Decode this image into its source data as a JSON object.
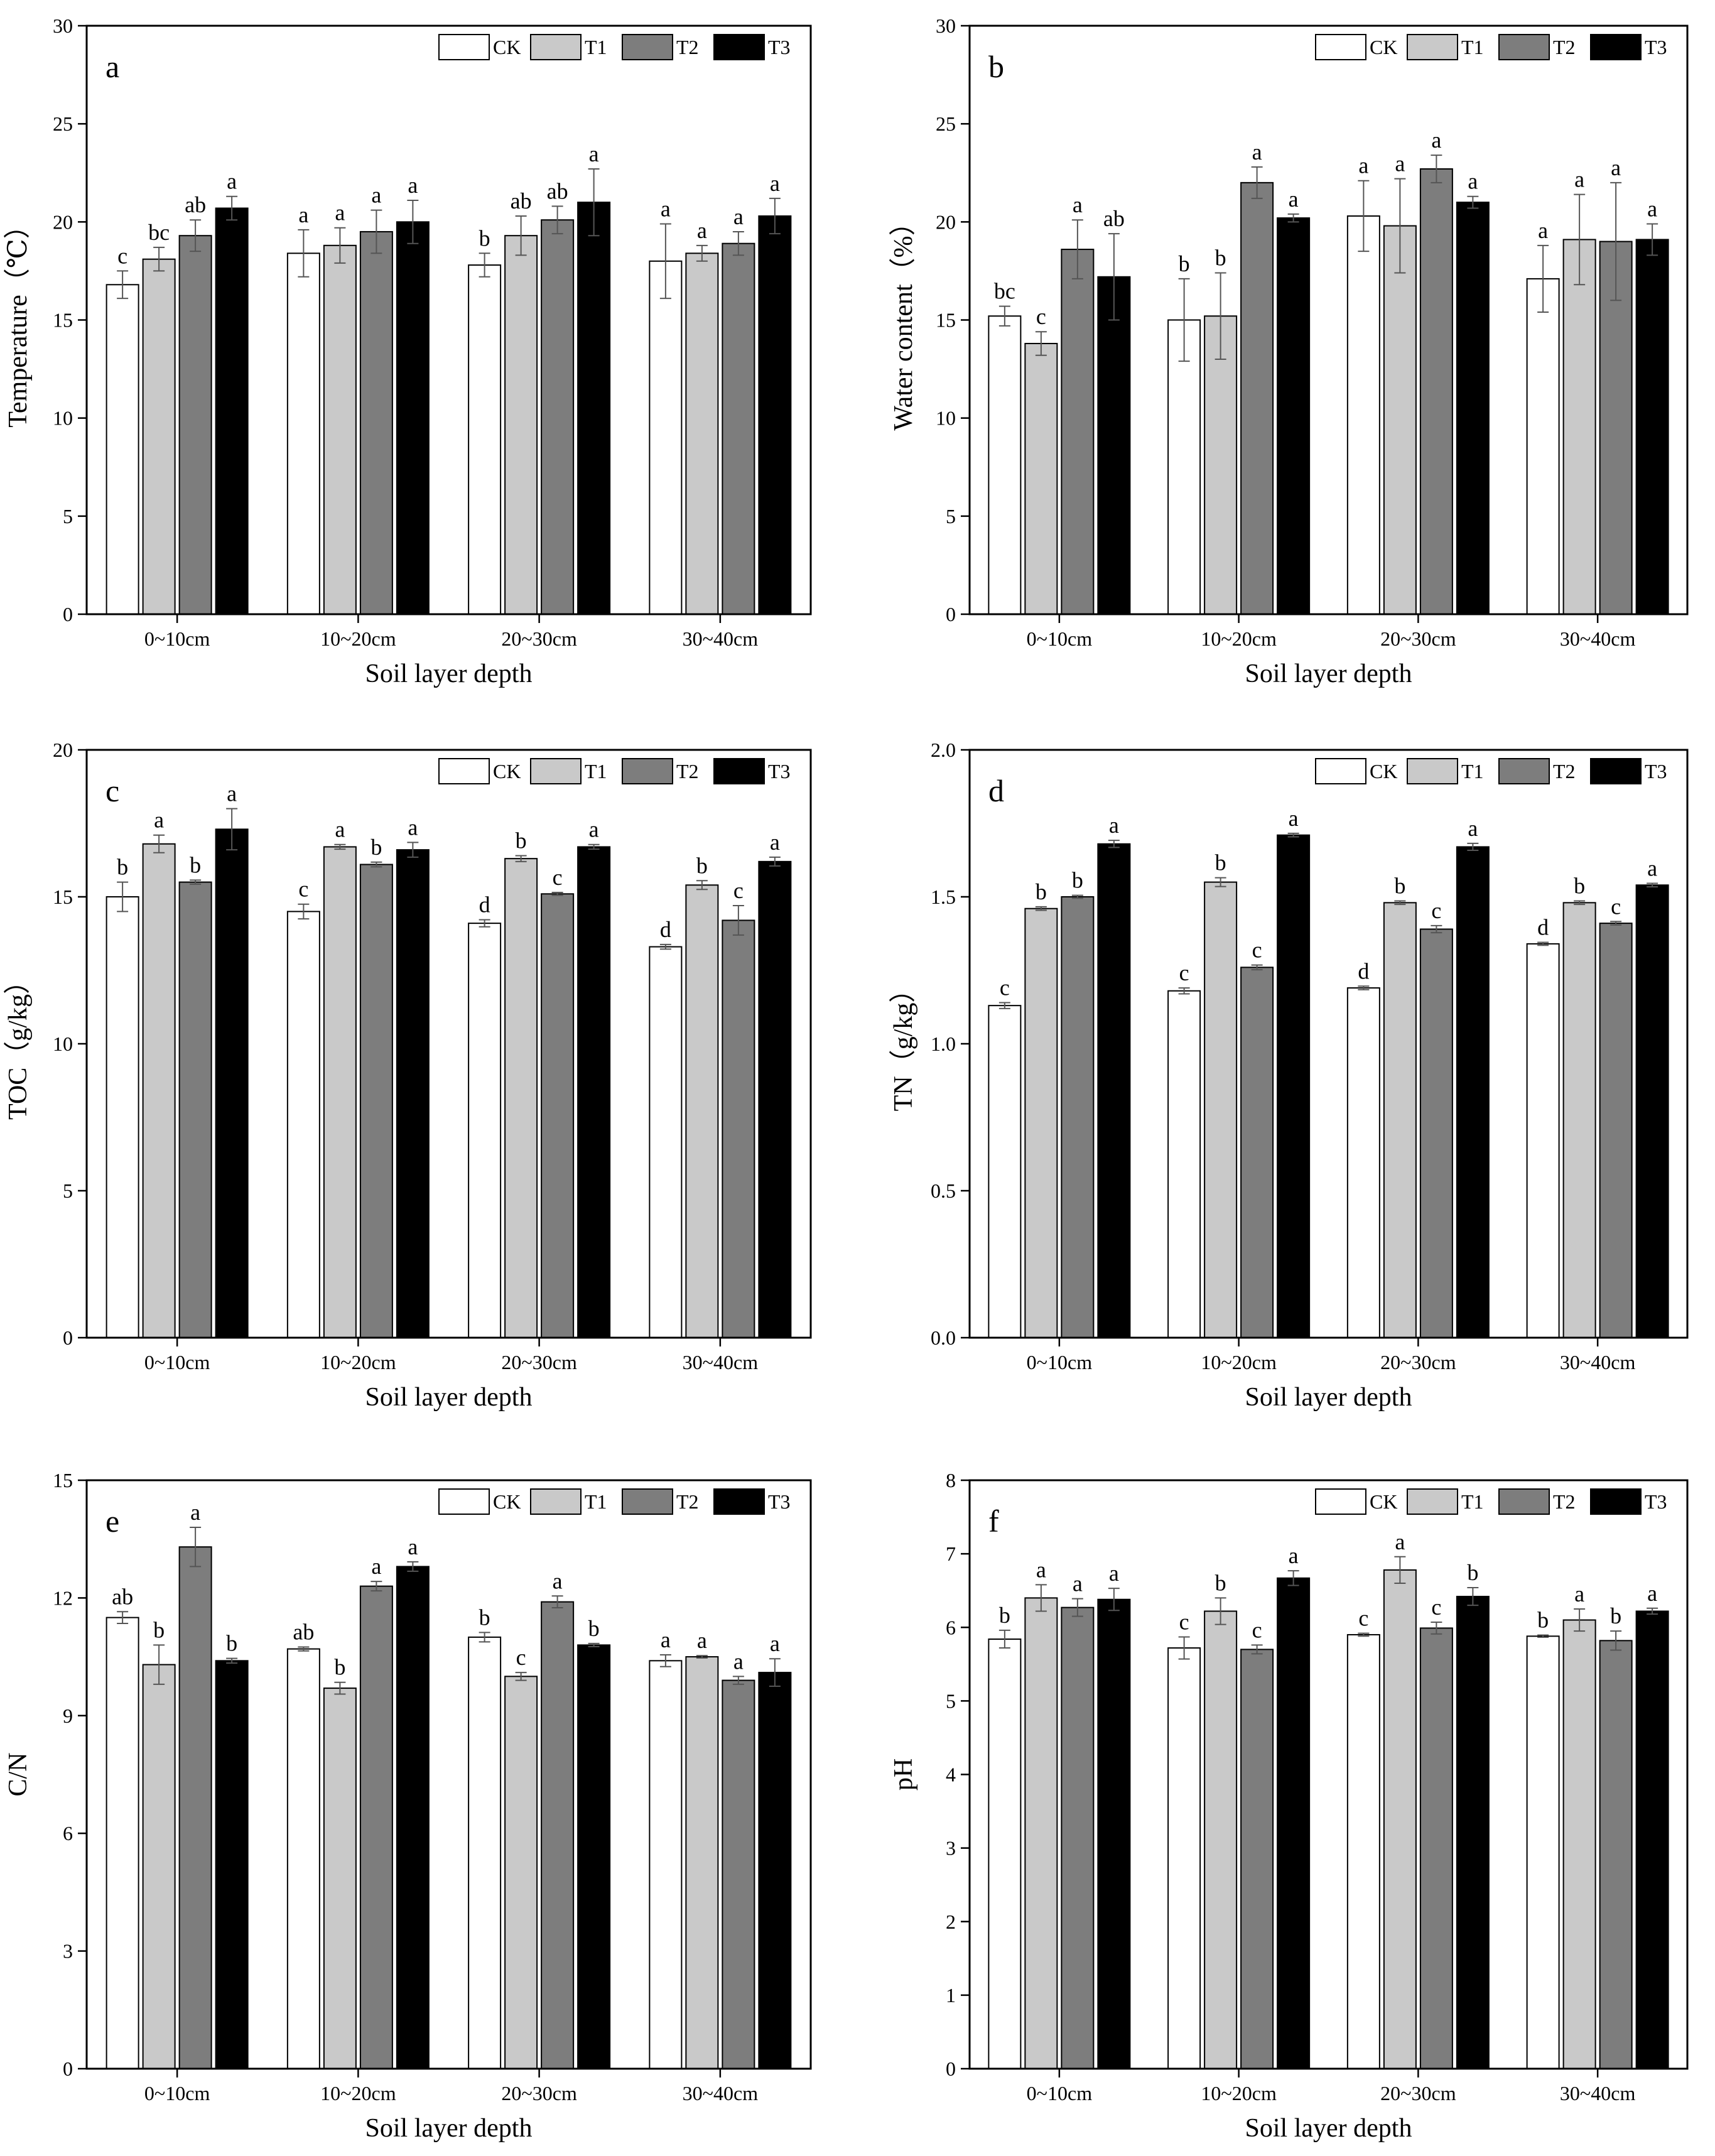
{
  "figure": {
    "series_colors": {
      "CK": "#ffffff",
      "T1": "#c9c9c9",
      "T2": "#7d7d7d",
      "T3": "#000000"
    }
  },
  "chart_data": [
    {
      "panel": "a",
      "type": "bar",
      "ylabel": "Temperature（℃）",
      "xlabel": "Soil layer depth",
      "categories": [
        "0~10cm",
        "10~20cm",
        "20~30cm",
        "30~40cm"
      ],
      "ylim": [
        0,
        30
      ],
      "yticks": [
        0,
        5,
        10,
        15,
        20,
        25,
        30
      ],
      "ytick_labels": [
        "0",
        "5",
        "10",
        "15",
        "20",
        "25",
        "30"
      ],
      "legend": [
        "CK",
        "T1",
        "T2",
        "T3"
      ],
      "legend_position": "top-right",
      "series": [
        {
          "name": "CK",
          "values": [
            16.8,
            18.4,
            17.8,
            18.0
          ],
          "errors": [
            0.7,
            1.2,
            0.6,
            1.9
          ],
          "labels": [
            "c",
            "a",
            "b",
            "a"
          ]
        },
        {
          "name": "T1",
          "values": [
            18.1,
            18.8,
            19.3,
            18.4
          ],
          "errors": [
            0.6,
            0.9,
            1.0,
            0.4
          ],
          "labels": [
            "bc",
            "a",
            "ab",
            "a"
          ]
        },
        {
          "name": "T2",
          "values": [
            19.3,
            19.5,
            20.1,
            18.9
          ],
          "errors": [
            0.8,
            1.1,
            0.7,
            0.6
          ],
          "labels": [
            "ab",
            "a",
            "ab",
            "a"
          ]
        },
        {
          "name": "T3",
          "values": [
            20.7,
            20.0,
            21.0,
            20.3
          ],
          "errors": [
            0.6,
            1.1,
            1.7,
            0.9
          ],
          "labels": [
            "a",
            "a",
            "a",
            "a"
          ]
        }
      ]
    },
    {
      "panel": "b",
      "type": "bar",
      "ylabel": "Water content（%）",
      "xlabel": "Soil layer depth",
      "categories": [
        "0~10cm",
        "10~20cm",
        "20~30cm",
        "30~40cm"
      ],
      "ylim": [
        0,
        30
      ],
      "yticks": [
        0,
        5,
        10,
        15,
        20,
        25,
        30
      ],
      "ytick_labels": [
        "0",
        "5",
        "10",
        "15",
        "20",
        "25",
        "30"
      ],
      "legend": [
        "CK",
        "T1",
        "T2",
        "T3"
      ],
      "legend_position": "top-right",
      "series": [
        {
          "name": "CK",
          "values": [
            15.2,
            15.0,
            20.3,
            17.1
          ],
          "errors": [
            0.5,
            2.1,
            1.8,
            1.7
          ],
          "labels": [
            "bc",
            "b",
            "a",
            "a"
          ]
        },
        {
          "name": "T1",
          "values": [
            13.8,
            15.2,
            19.8,
            19.1
          ],
          "errors": [
            0.6,
            2.2,
            2.4,
            2.3
          ],
          "labels": [
            "c",
            "b",
            "a",
            "a"
          ]
        },
        {
          "name": "T2",
          "values": [
            18.6,
            22.0,
            22.7,
            19.0
          ],
          "errors": [
            1.5,
            0.8,
            0.7,
            3.0
          ],
          "labels": [
            "a",
            "a",
            "a",
            "a"
          ]
        },
        {
          "name": "T3",
          "values": [
            17.2,
            20.2,
            21.0,
            19.1
          ],
          "errors": [
            2.2,
            0.2,
            0.3,
            0.8
          ],
          "labels": [
            "ab",
            "a",
            "a",
            "a"
          ]
        }
      ]
    },
    {
      "panel": "c",
      "type": "bar",
      "ylabel": "TOC（g/kg）",
      "xlabel": "Soil layer depth",
      "categories": [
        "0~10cm",
        "10~20cm",
        "20~30cm",
        "30~40cm"
      ],
      "ylim": [
        0,
        20
      ],
      "yticks": [
        0,
        5,
        10,
        15,
        20
      ],
      "ytick_labels": [
        "0",
        "5",
        "10",
        "15",
        "20"
      ],
      "legend": [
        "CK",
        "T1",
        "T2",
        "T3"
      ],
      "legend_position": "top-right",
      "series": [
        {
          "name": "CK",
          "values": [
            15.0,
            14.5,
            14.1,
            13.3
          ],
          "errors": [
            0.5,
            0.25,
            0.12,
            0.08
          ],
          "labels": [
            "b",
            "c",
            "d",
            "d"
          ]
        },
        {
          "name": "T1",
          "values": [
            16.8,
            16.7,
            16.3,
            15.4
          ],
          "errors": [
            0.3,
            0.08,
            0.1,
            0.15
          ],
          "labels": [
            "a",
            "a",
            "b",
            "b"
          ]
        },
        {
          "name": "T2",
          "values": [
            15.5,
            16.1,
            15.1,
            14.2
          ],
          "errors": [
            0.07,
            0.08,
            0.05,
            0.5
          ],
          "labels": [
            "b",
            "b",
            "c",
            "c"
          ]
        },
        {
          "name": "T3",
          "values": [
            17.3,
            16.6,
            16.7,
            16.2
          ],
          "errors": [
            0.7,
            0.25,
            0.08,
            0.15
          ],
          "labels": [
            "a",
            "a",
            "a",
            "a"
          ]
        }
      ]
    },
    {
      "panel": "d",
      "type": "bar",
      "ylabel": "TN（g/kg）",
      "xlabel": "Soil layer depth",
      "categories": [
        "0~10cm",
        "10~20cm",
        "20~30cm",
        "30~40cm"
      ],
      "ylim": [
        0,
        2.0
      ],
      "yticks": [
        0,
        0.5,
        1.0,
        1.5,
        2.0
      ],
      "ytick_labels": [
        "0.0",
        "0.5",
        "1.0",
        "1.5",
        "2.0"
      ],
      "legend": [
        "CK",
        "T1",
        "T2",
        "T3"
      ],
      "legend_position": "top-right",
      "series": [
        {
          "name": "CK",
          "values": [
            1.13,
            1.18,
            1.19,
            1.34
          ],
          "errors": [
            0.01,
            0.01,
            0.006,
            0.005
          ],
          "labels": [
            "c",
            "c",
            "d",
            "d"
          ]
        },
        {
          "name": "T1",
          "values": [
            1.46,
            1.55,
            1.48,
            1.48
          ],
          "errors": [
            0.006,
            0.015,
            0.006,
            0.006
          ],
          "labels": [
            "b",
            "b",
            "b",
            "b"
          ]
        },
        {
          "name": "T2",
          "values": [
            1.5,
            1.26,
            1.39,
            1.41
          ],
          "errors": [
            0.005,
            0.008,
            0.012,
            0.006
          ],
          "labels": [
            "b",
            "c",
            "c",
            "c"
          ]
        },
        {
          "name": "T3",
          "values": [
            1.68,
            1.71,
            1.67,
            1.54
          ],
          "errors": [
            0.012,
            0.006,
            0.012,
            0.006
          ],
          "labels": [
            "a",
            "a",
            "a",
            "a"
          ]
        }
      ]
    },
    {
      "panel": "e",
      "type": "bar",
      "ylabel": "C/N",
      "xlabel": "Soil layer depth",
      "categories": [
        "0~10cm",
        "10~20cm",
        "20~30cm",
        "30~40cm"
      ],
      "ylim": [
        0,
        15
      ],
      "yticks": [
        0,
        3,
        6,
        9,
        12,
        15
      ],
      "ytick_labels": [
        "0",
        "3",
        "6",
        "9",
        "12",
        "15"
      ],
      "legend": [
        "CK",
        "T1",
        "T2",
        "T3"
      ],
      "legend_position": "top-right",
      "series": [
        {
          "name": "CK",
          "values": [
            11.5,
            10.7,
            11.0,
            10.4
          ],
          "errors": [
            0.15,
            0.05,
            0.12,
            0.15
          ],
          "labels": [
            "ab",
            "ab",
            "b",
            "a"
          ]
        },
        {
          "name": "T1",
          "values": [
            10.3,
            9.7,
            10.0,
            10.5
          ],
          "errors": [
            0.5,
            0.15,
            0.1,
            0.03
          ],
          "labels": [
            "b",
            "b",
            "c",
            "a"
          ]
        },
        {
          "name": "T2",
          "values": [
            13.3,
            12.3,
            11.9,
            9.9
          ],
          "errors": [
            0.5,
            0.12,
            0.15,
            0.1
          ],
          "labels": [
            "a",
            "a",
            "a",
            "a"
          ]
        },
        {
          "name": "T3",
          "values": [
            10.4,
            12.8,
            10.8,
            10.1
          ],
          "errors": [
            0.06,
            0.12,
            0.04,
            0.35
          ],
          "labels": [
            "b",
            "a",
            "b",
            "a"
          ]
        }
      ]
    },
    {
      "panel": "f",
      "type": "bar",
      "ylabel": "pH",
      "xlabel": "Soil layer depth",
      "categories": [
        "0~10cm",
        "10~20cm",
        "20~30cm",
        "30~40cm"
      ],
      "ylim": [
        0,
        8
      ],
      "yticks": [
        0,
        1,
        2,
        3,
        4,
        5,
        6,
        7,
        8
      ],
      "ytick_labels": [
        "0",
        "1",
        "2",
        "3",
        "4",
        "5",
        "6",
        "7",
        "8"
      ],
      "legend": [
        "CK",
        "T1",
        "T2",
        "T3"
      ],
      "legend_position": "top-right",
      "series": [
        {
          "name": "CK",
          "values": [
            5.84,
            5.72,
            5.9,
            5.88
          ],
          "errors": [
            0.12,
            0.15,
            0.02,
            0.015
          ],
          "labels": [
            "b",
            "c",
            "c",
            "b"
          ]
        },
        {
          "name": "T1",
          "values": [
            6.4,
            6.22,
            6.78,
            6.1
          ],
          "errors": [
            0.18,
            0.18,
            0.18,
            0.15
          ],
          "labels": [
            "a",
            "b",
            "a",
            "a"
          ]
        },
        {
          "name": "T2",
          "values": [
            6.27,
            5.7,
            5.99,
            5.82
          ],
          "errors": [
            0.12,
            0.06,
            0.08,
            0.13
          ],
          "labels": [
            "a",
            "c",
            "c",
            "b"
          ]
        },
        {
          "name": "T3",
          "values": [
            6.38,
            6.67,
            6.42,
            6.22
          ],
          "errors": [
            0.15,
            0.1,
            0.12,
            0.04
          ],
          "labels": [
            "a",
            "a",
            "b",
            "a"
          ]
        }
      ]
    }
  ]
}
